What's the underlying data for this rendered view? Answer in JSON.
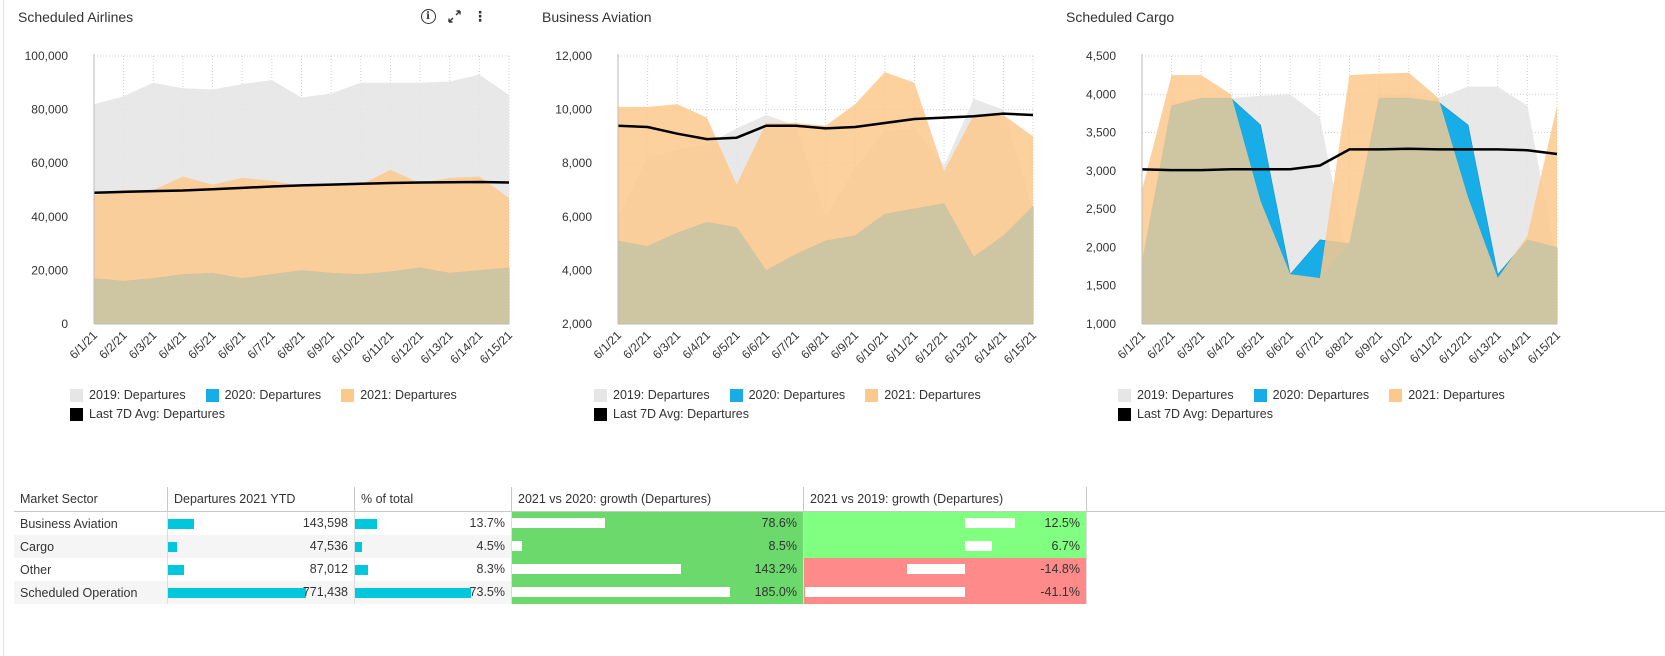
{
  "panels": [
    {
      "title": "Scheduled Airlines",
      "show_tools": true
    },
    {
      "title": "Business Aviation",
      "show_tools": false
    },
    {
      "title": "Scheduled Cargo",
      "show_tools": false
    }
  ],
  "icons": {
    "info": "info-icon",
    "expand": "expand-icon",
    "menu": "kebab-menu-icon"
  },
  "legend": {
    "s2019": "2019: Departures",
    "s2020": "2020: Departures",
    "s2021": "2021: Departures",
    "avg": "Last 7D Avg: Departures"
  },
  "colors": {
    "s2019": "#e6e6e6",
    "s2020": "#18ade6",
    "s2021": "#fcc98d",
    "overlap": "#cec5a2",
    "avg": "#000000",
    "growth_pos": "#6cd96c",
    "growth_pos_light": "#80ff80",
    "growth_neg": "#ff8a8a",
    "bar": "#00c8dc"
  },
  "chart_data": [
    {
      "type": "area",
      "x": [
        "6/1/21",
        "6/2/21",
        "6/3/21",
        "6/4/21",
        "6/5/21",
        "6/6/21",
        "6/7/21",
        "6/8/21",
        "6/9/21",
        "6/10/21",
        "6/11/21",
        "6/12/21",
        "6/13/21",
        "6/14/21",
        "6/15/21"
      ],
      "ylim": [
        0,
        100000
      ],
      "yticks": [
        "0",
        "20,000",
        "40,000",
        "60,000",
        "80,000",
        "100,000"
      ],
      "series": [
        {
          "name": "2019: Departures",
          "values": [
            82000,
            85000,
            90000,
            88000,
            87500,
            89500,
            91000,
            84500,
            86000,
            90000,
            90000,
            90000,
            90500,
            93000,
            85500
          ]
        },
        {
          "name": "2020: Departures",
          "values": [
            17000,
            16000,
            17000,
            18500,
            19000,
            17000,
            18500,
            20000,
            19000,
            18500,
            19500,
            21000,
            19000,
            20000,
            21000
          ]
        },
        {
          "name": "2021: Departures",
          "values": [
            48000,
            50000,
            50000,
            55000,
            52000,
            54500,
            53500,
            51500,
            52000,
            52000,
            57500,
            52500,
            54500,
            55000,
            47000
          ]
        },
        {
          "name": "Last 7D Avg: Departures",
          "values": [
            49000,
            49300,
            49600,
            49800,
            50300,
            50800,
            51300,
            51700,
            52000,
            52300,
            52600,
            52800,
            52900,
            53000,
            52800
          ]
        }
      ]
    },
    {
      "type": "area",
      "x": [
        "6/1/21",
        "6/2/21",
        "6/3/21",
        "6/4/21",
        "6/5/21",
        "6/6/21",
        "6/7/21",
        "6/8/21",
        "6/9/21",
        "6/10/21",
        "6/11/21",
        "6/12/21",
        "6/13/21",
        "6/14/21",
        "6/15/21"
      ],
      "ylim": [
        2000,
        12000
      ],
      "yticks": [
        "2,000",
        "4,000",
        "6,000",
        "8,000",
        "10,000",
        "12,000"
      ],
      "series": [
        {
          "name": "2019: Departures",
          "values": [
            6000,
            8200,
            8500,
            8700,
            9300,
            9800,
            9400,
            6000,
            7800,
            9200,
            9300,
            7900,
            10400,
            10000,
            6300
          ]
        },
        {
          "name": "2020: Departures",
          "values": [
            5100,
            4900,
            5400,
            5800,
            5600,
            4000,
            4600,
            5100,
            5300,
            6100,
            6300,
            6500,
            4500,
            5300,
            6400
          ]
        },
        {
          "name": "2021: Departures",
          "values": [
            10100,
            10100,
            10200,
            9700,
            7200,
            9500,
            9500,
            9400,
            10200,
            11400,
            11000,
            7700,
            9800,
            9800,
            9000
          ]
        },
        {
          "name": "Last 7D Avg: Departures",
          "values": [
            9400,
            9350,
            9100,
            8900,
            8950,
            9400,
            9400,
            9300,
            9350,
            9500,
            9650,
            9700,
            9750,
            9850,
            9800
          ]
        }
      ]
    },
    {
      "type": "area",
      "x": [
        "6/1/21",
        "6/2/21",
        "6/3/21",
        "6/4/21",
        "6/5/21",
        "6/6/21",
        "6/7/21",
        "6/8/21",
        "6/9/21",
        "6/10/21",
        "6/11/21",
        "6/12/21",
        "6/13/21",
        "6/14/21",
        "6/15/21"
      ],
      "ylim": [
        1000,
        4500
      ],
      "yticks": [
        "1,000",
        "1,500",
        "2,000",
        "2,500",
        "3,000",
        "3,500",
        "4,000",
        "4,500"
      ],
      "series": [
        {
          "name": "2019: Departures",
          "values": [
            1750,
            3900,
            3950,
            3950,
            3980,
            4000,
            3700,
            1750,
            4000,
            4000,
            3950,
            4100,
            4100,
            3850,
            1800
          ]
        },
        {
          "name": "2020: Departures",
          "values": [
            1800,
            3850,
            3950,
            3950,
            3600,
            1650,
            2100,
            2050,
            3950,
            3950,
            3900,
            3600,
            1650,
            2100,
            2000
          ]
        },
        {
          "name": "2021: Departures",
          "values": [
            2750,
            4250,
            4250,
            4000,
            2600,
            1650,
            1600,
            4250,
            4270,
            4280,
            3950,
            2650,
            1600,
            2150,
            3850
          ]
        },
        {
          "name": "Last 7D Avg: Departures",
          "values": [
            3020,
            3010,
            3010,
            3020,
            3020,
            3020,
            3070,
            3280,
            3280,
            3290,
            3280,
            3280,
            3280,
            3270,
            3220
          ]
        }
      ]
    }
  ],
  "table": {
    "headers": [
      "Market Sector",
      "Departures 2021 YTD",
      "% of total",
      "2021 vs 2020: growth (Departures)",
      "2021 vs 2019: growth (Departures)"
    ],
    "rows": [
      {
        "sector": "Business Aviation",
        "departures": "143,598",
        "departures_value": 143598,
        "pct": "13.7%",
        "pct_value": 13.7,
        "g2020": "78.6%",
        "g2020_value": 78.6,
        "g2019": "12.5%",
        "g2019_value": 12.5,
        "g2019_color": "#80ff80"
      },
      {
        "sector": "Cargo",
        "departures": "47,536",
        "departures_value": 47536,
        "pct": "4.5%",
        "pct_value": 4.5,
        "g2020": "8.5%",
        "g2020_value": 8.5,
        "g2019": "6.7%",
        "g2019_value": 6.7,
        "g2019_color": "#80ff80"
      },
      {
        "sector": "Other",
        "departures": "87,012",
        "departures_value": 87012,
        "pct": "8.3%",
        "pct_value": 8.3,
        "g2020": "143.2%",
        "g2020_value": 143.2,
        "g2019": "-14.8%",
        "g2019_value": -14.8,
        "g2019_color": "#ff8a8a"
      },
      {
        "sector": "Scheduled Operation",
        "departures": "771,438",
        "departures_value": 771438,
        "pct": "73.5%",
        "pct_value": 73.5,
        "g2020": "185.0%",
        "g2020_value": 185.0,
        "g2019": "-41.1%",
        "g2019_value": -41.1,
        "g2019_color": "#ff8a8a"
      }
    ]
  }
}
